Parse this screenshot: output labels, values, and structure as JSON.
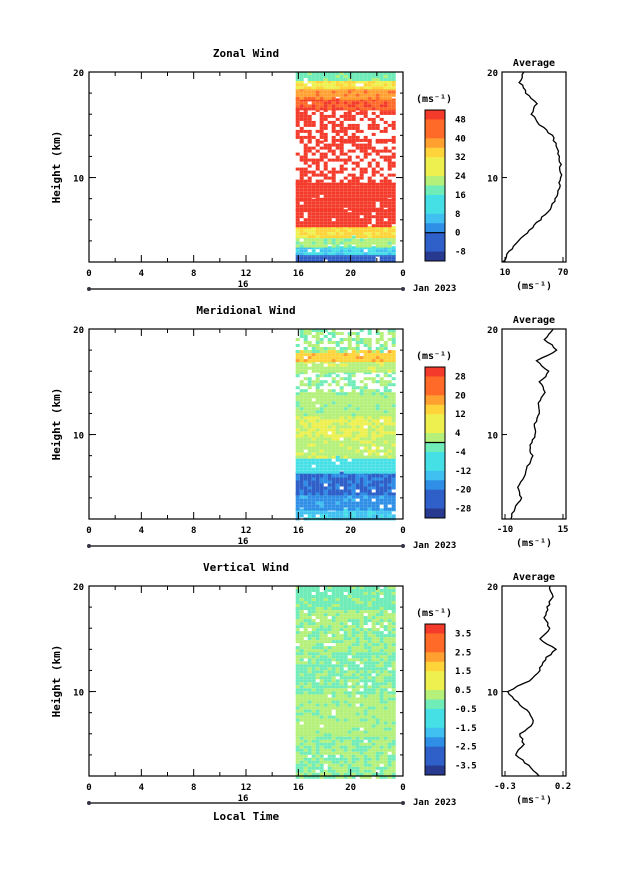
{
  "chart_data": [
    {
      "type": "heatmap",
      "title": "Zonal Wind",
      "ylabel": "Height (km)",
      "ylim": [
        2,
        20
      ],
      "y_ticks": [
        10,
        20
      ],
      "x_ticks": [
        "0",
        "4",
        "8",
        "12",
        "16",
        "20",
        "0"
      ],
      "xlim_hours": [
        0,
        24
      ],
      "data_start_hour": 15.8,
      "date_label": "16",
      "date_suffix": "Jan 2023",
      "colorbar": {
        "unit": "(ms⁻¹)",
        "ticks": [
          "48",
          "40",
          "32",
          "24",
          "16",
          "8",
          "0",
          "-8"
        ],
        "min": -12,
        "max": 52,
        "zero_line": 0
      },
      "bands": [
        {
          "from": 2.0,
          "to": 2.8,
          "value": -4
        },
        {
          "from": 2.8,
          "to": 3.5,
          "value": 10
        },
        {
          "from": 3.5,
          "to": 4.5,
          "value": 22
        },
        {
          "from": 4.5,
          "to": 5.4,
          "value": 32
        },
        {
          "from": 5.4,
          "to": 7.0,
          "value": 50
        },
        {
          "from": 7.0,
          "to": 8.0,
          "value": 50
        },
        {
          "from": 8.0,
          "to": 9.5,
          "value": 50
        },
        {
          "from": 9.5,
          "to": 13.5,
          "value": 50,
          "sparse": true
        },
        {
          "from": 13.5,
          "to": 16.5,
          "value": 50,
          "sparse": true
        },
        {
          "from": 16.5,
          "to": 17.5,
          "value": 46
        },
        {
          "from": 17.5,
          "to": 18.5,
          "value": 40
        },
        {
          "from": 18.5,
          "to": 19.2,
          "value": 30
        },
        {
          "from": 19.2,
          "to": 20.0,
          "value": 18
        }
      ],
      "average": {
        "title": "Average",
        "unit": "(ms⁻¹)",
        "x_ticks": [
          "10",
          "70"
        ],
        "xlim": [
          10,
          80
        ],
        "y_ticks": [
          "10",
          "20"
        ],
        "height": [
          2,
          3,
          4,
          5,
          6,
          7,
          8,
          9,
          10,
          11,
          12,
          13,
          14,
          15,
          16,
          17,
          18,
          19,
          20
        ],
        "value": [
          12,
          18,
          28,
          40,
          52,
          62,
          68,
          72,
          74,
          74,
          73,
          70,
          64,
          52,
          42,
          48,
          36,
          30,
          34
        ]
      }
    },
    {
      "type": "heatmap",
      "title": "Meridional Wind",
      "ylabel": "Height (km)",
      "ylim": [
        2,
        20
      ],
      "y_ticks": [
        10,
        20
      ],
      "x_ticks": [
        "0",
        "4",
        "8",
        "12",
        "16",
        "20",
        "0"
      ],
      "xlim_hours": [
        0,
        24
      ],
      "data_start_hour": 15.8,
      "date_label": "16",
      "date_suffix": "Jan 2023",
      "colorbar": {
        "unit": "(ms⁻¹)",
        "ticks": [
          "28",
          "20",
          "12",
          "4",
          "-4",
          "-12",
          "-20",
          "-28"
        ],
        "min": -32,
        "max": 32,
        "zero_line": 0
      },
      "bands": [
        {
          "from": 2.0,
          "to": 3.0,
          "value": -12
        },
        {
          "from": 3.0,
          "to": 4.5,
          "value": -18
        },
        {
          "from": 4.5,
          "to": 6.5,
          "value": -22
        },
        {
          "from": 6.5,
          "to": 8.0,
          "value": -8
        },
        {
          "from": 8.0,
          "to": 10.0,
          "value": 4
        },
        {
          "from": 10.0,
          "to": 12.0,
          "value": 6
        },
        {
          "from": 12.0,
          "to": 14.0,
          "value": 2
        },
        {
          "from": 14.0,
          "to": 16.0,
          "value": 0,
          "sparse": true
        },
        {
          "from": 16.0,
          "to": 17.0,
          "value": 4
        },
        {
          "from": 17.0,
          "to": 18.0,
          "value": 14
        },
        {
          "from": 18.0,
          "to": 20.0,
          "value": 0,
          "sparse": true
        }
      ],
      "average": {
        "title": "Average",
        "unit": "(ms⁻¹)",
        "x_ticks": [
          "-10",
          "15"
        ],
        "xlim": [
          -12,
          18
        ],
        "y_ticks": [
          "10",
          "20"
        ],
        "height": [
          2,
          3,
          4,
          5,
          6,
          7,
          8,
          9,
          10,
          11,
          12,
          13,
          14,
          15,
          16,
          17,
          18,
          19,
          20
        ],
        "value": [
          -8,
          -6,
          -3,
          -5,
          -1,
          0,
          2,
          1,
          4,
          3,
          6,
          5,
          8,
          6,
          10,
          4,
          14,
          8,
          12
        ]
      }
    },
    {
      "type": "heatmap",
      "title": "Vertical Wind",
      "ylabel": "Height (km)",
      "ylim": [
        2,
        20
      ],
      "y_ticks": [
        10,
        20
      ],
      "x_ticks": [
        "0",
        "4",
        "8",
        "12",
        "16",
        "20",
        "0"
      ],
      "xlim_hours": [
        0,
        24
      ],
      "data_start_hour": 15.8,
      "date_label": "16",
      "date_suffix": "Jan 2023",
      "xlabel": "Local Time",
      "colorbar": {
        "unit": "(ms⁻¹)",
        "ticks": [
          "3.5",
          "2.5",
          "1.5",
          "0.5",
          "-0.5",
          "-1.5",
          "-2.5",
          "-3.5"
        ],
        "min": -4,
        "max": 4
      },
      "bands": [
        {
          "from": 2.0,
          "to": 6.0,
          "value": 0.0
        },
        {
          "from": 6.0,
          "to": 10.0,
          "value": 0.2
        },
        {
          "from": 10.0,
          "to": 14.0,
          "value": -0.1
        },
        {
          "from": 14.0,
          "to": 18.0,
          "value": 0.1
        },
        {
          "from": 18.0,
          "to": 20.0,
          "value": -0.2
        }
      ],
      "average": {
        "title": "Average",
        "unit": "(ms⁻¹)",
        "x_ticks": [
          "-0.3",
          "0.2"
        ],
        "xlim": [
          -0.35,
          0.25
        ],
        "y_ticks": [
          "10",
          "20"
        ],
        "height": [
          2,
          3,
          4,
          5,
          6,
          7,
          8,
          9,
          10,
          11,
          12,
          13,
          14,
          15,
          16,
          17,
          18,
          19,
          20
        ],
        "value": [
          0.0,
          -0.1,
          -0.22,
          -0.15,
          -0.18,
          -0.05,
          -0.1,
          -0.2,
          -0.3,
          -0.1,
          0.0,
          0.05,
          0.15,
          0.0,
          0.1,
          0.05,
          0.08,
          0.12,
          0.1
        ]
      }
    }
  ]
}
